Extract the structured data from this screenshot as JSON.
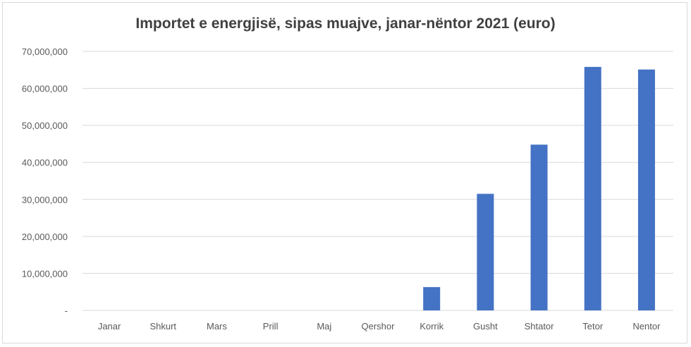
{
  "chart_data": {
    "type": "bar",
    "title": "Importet e energjisë, sipas muajve, janar-nëntor 2021  (euro)",
    "xlabel": "",
    "ylabel": "",
    "categories": [
      "Janar",
      "Shkurt",
      "Mars",
      "Prill",
      "Maj",
      "Qershor",
      "Korrik",
      "Gusht",
      "Shtator",
      "Tetor",
      "Nentor"
    ],
    "values": [
      0,
      0,
      0,
      0,
      0,
      0,
      6300000,
      31500000,
      44800000,
      65800000,
      65100000
    ],
    "ylim": [
      0,
      70000000
    ],
    "yticks": [
      {
        "value": 0,
        "label": "-"
      },
      {
        "value": 10000000,
        "label": "10,000,000"
      },
      {
        "value": 20000000,
        "label": "20,000,000"
      },
      {
        "value": 30000000,
        "label": "30,000,000"
      },
      {
        "value": 40000000,
        "label": "40,000,000"
      },
      {
        "value": 50000000,
        "label": "50,000,000"
      },
      {
        "value": 60000000,
        "label": "60,000,000"
      },
      {
        "value": 70000000,
        "label": "70,000,000"
      }
    ],
    "grid": true,
    "legend": "none",
    "bar_color": "#4472c4",
    "grid_color": "#d9d9d9"
  }
}
